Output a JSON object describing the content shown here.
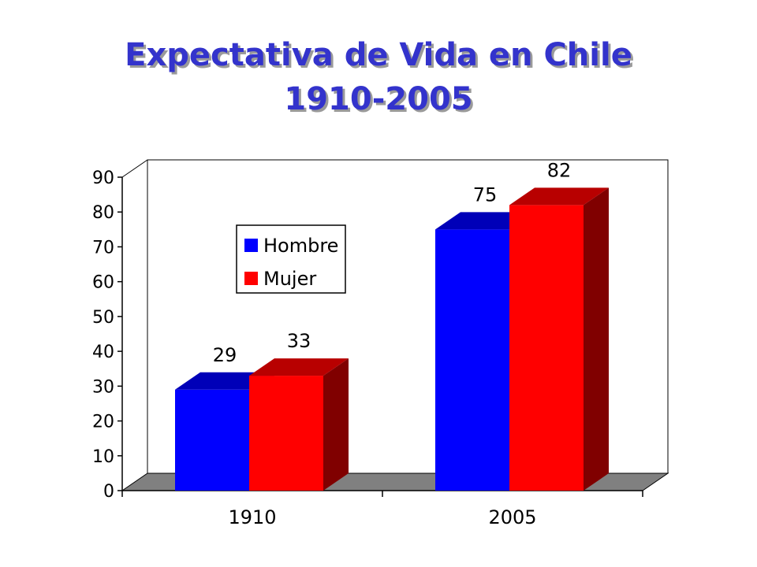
{
  "title": {
    "line1": "Expectativa de Vida en Chile",
    "line2": "1910-2005"
  },
  "colors": {
    "title": "#3333cc",
    "hombre": "#0000ff",
    "mujer": "#ff0000",
    "floor": "#808080"
  },
  "chart_data": {
    "type": "bar",
    "categories": [
      "1910",
      "2005"
    ],
    "series": [
      {
        "name": "Hombre",
        "values": [
          29,
          75
        ],
        "color": "#0000ff"
      },
      {
        "name": "Mujer",
        "values": [
          33,
          82
        ],
        "color": "#ff0000"
      }
    ],
    "ylim": [
      0,
      90
    ],
    "yticks": [
      "0",
      "10",
      "20",
      "30",
      "40",
      "50",
      "60",
      "70",
      "80",
      "90"
    ],
    "data_labels": [
      [
        "29",
        "75"
      ],
      [
        "33",
        "82"
      ]
    ],
    "legend_position": "left-inside",
    "style": "3d-clustered-bar",
    "grid": false
  }
}
